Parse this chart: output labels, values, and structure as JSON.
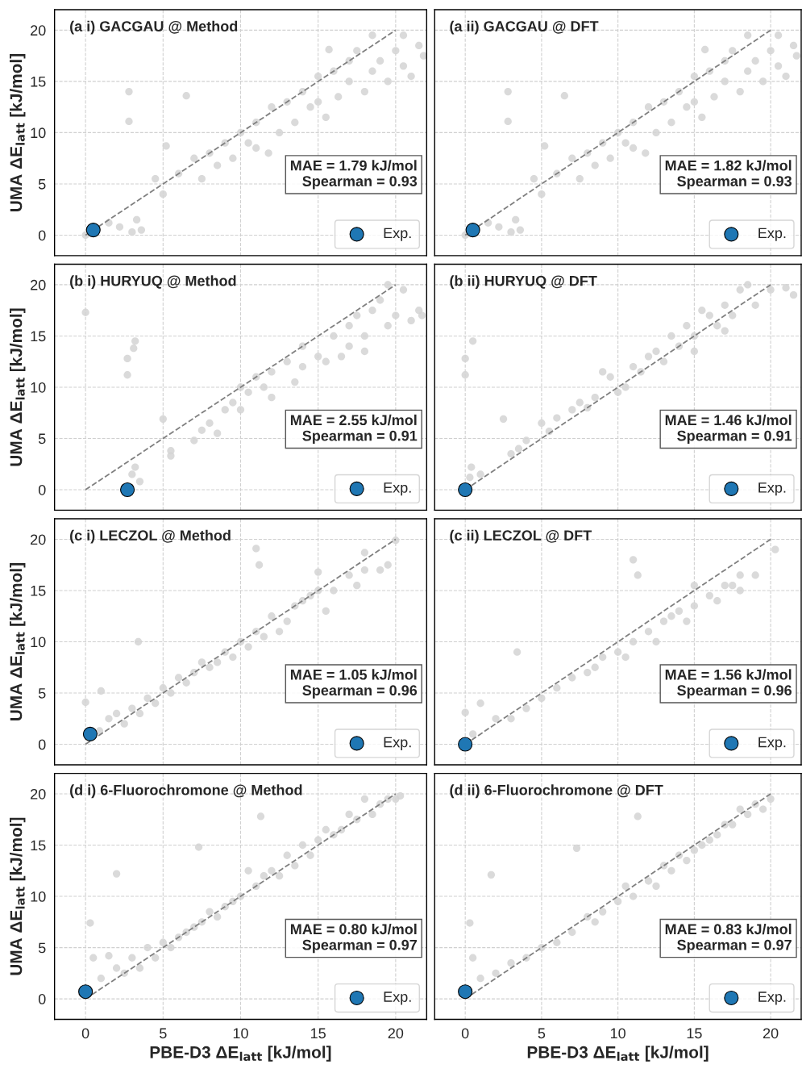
{
  "chart_data": [
    {
      "type": "scatter",
      "title": "(a i) GACGAU @ Method",
      "ylabel": "UMA ΔE$_{latt}$ [kJ/mol]",
      "xlim": [
        -2,
        22
      ],
      "ylim": [
        -2,
        22
      ],
      "xticks": [
        0,
        5,
        10,
        15,
        20
      ],
      "yticks": [
        0,
        5,
        10,
        15,
        20
      ],
      "tick_labels": "y",
      "grid": true,
      "legend": "bottom right",
      "annotations": [
        "MAE = 1.79 kJ/mol\nSpearman = 0.93"
      ],
      "series": [
        {
          "type": "scatter",
          "color": "#d3d3d3",
          "x": [
            0,
            1.5,
            2.2,
            3,
            3.3,
            3.6,
            2.8,
            2.8,
            4.5,
            5,
            5.2,
            6.5,
            6,
            7,
            7.5,
            8,
            8.5,
            9,
            9.5,
            10,
            10.5,
            11,
            11,
            11.8,
            12,
            12.5,
            13,
            13.5,
            14,
            14.5,
            15,
            15,
            15.5,
            16,
            16.3,
            17,
            17,
            17.5,
            18,
            18.5,
            18.5,
            19,
            19.5,
            20,
            20.5,
            21,
            21.5,
            20.5,
            21.8,
            15.7
          ],
          "values": [
            0,
            1.2,
            0.8,
            0.3,
            1.5,
            0.5,
            14,
            11.1,
            5.5,
            4,
            8.7,
            13.6,
            6,
            7.5,
            5.5,
            8,
            6.8,
            9,
            7.5,
            10,
            9,
            8.5,
            11,
            8,
            12.5,
            10,
            13,
            11,
            14,
            12.5,
            13,
            15.5,
            11.5,
            16,
            13.5,
            15,
            17,
            18,
            14,
            16,
            19.5,
            17,
            15,
            18,
            16.5,
            15.5,
            18.5,
            19.5,
            17.5,
            18.1
          ]
        },
        {
          "type": "line",
          "color": "#808080",
          "line_style": "dashed",
          "x": [
            0,
            20
          ],
          "values": [
            0,
            20
          ]
        },
        {
          "type": "scatter",
          "name": "Exp.",
          "color": "#1f77b4",
          "x": [
            0.5
          ],
          "values": [
            0.5
          ]
        }
      ]
    },
    {
      "type": "scatter",
      "title": "(a ii) GACGAU @ DFT",
      "xlim": [
        -2,
        22
      ],
      "ylim": [
        -2,
        22
      ],
      "xticks": [
        0,
        5,
        10,
        15,
        20
      ],
      "yticks": [
        0,
        5,
        10,
        15,
        20
      ],
      "tick_labels": false,
      "grid": true,
      "legend": "bottom right",
      "annotations": [
        "MAE = 1.82 kJ/mol\nSpearman = 0.93"
      ],
      "series": [
        {
          "type": "scatter",
          "color": "#d3d3d3",
          "x": [
            0,
            1.5,
            2.2,
            3,
            3.3,
            3.6,
            2.8,
            2.8,
            4.5,
            5,
            5.2,
            6.5,
            6,
            7,
            7.5,
            8,
            8.5,
            9,
            9.5,
            10,
            10.5,
            11,
            11,
            11.8,
            12,
            12.5,
            13,
            13.5,
            14,
            14.5,
            15,
            15,
            15.5,
            16,
            16.3,
            17,
            17,
            17.5,
            18,
            18.5,
            18.5,
            19,
            19.5,
            20,
            20.5,
            21,
            21.5,
            20.5,
            21.7,
            15.7
          ],
          "values": [
            0,
            1.2,
            0.8,
            0.3,
            1.5,
            0.5,
            14,
            11.1,
            5.5,
            4,
            8.7,
            13.6,
            6,
            7.5,
            5.5,
            8,
            6.8,
            9,
            7.5,
            10,
            9,
            8.5,
            11,
            8,
            12.5,
            10,
            13,
            11,
            14,
            12.5,
            13,
            15.5,
            11.5,
            16,
            13.5,
            15,
            17,
            18,
            14,
            16,
            19.5,
            17,
            15,
            18,
            16.5,
            15.5,
            18.5,
            19.5,
            17.5,
            18.1
          ]
        },
        {
          "type": "line",
          "color": "#808080",
          "line_style": "dashed",
          "x": [
            0,
            20
          ],
          "values": [
            0,
            20
          ]
        },
        {
          "type": "scatter",
          "name": "Exp.",
          "color": "#1f77b4",
          "x": [
            0.5
          ],
          "values": [
            0.5
          ]
        }
      ]
    },
    {
      "type": "scatter",
      "title": "(b i) HURYUQ @ Method",
      "ylabel": "UMA ΔE$_{latt}$ [kJ/mol]",
      "xlim": [
        -2,
        22
      ],
      "ylim": [
        -2,
        22
      ],
      "xticks": [
        0,
        5,
        10,
        15,
        20
      ],
      "yticks": [
        0,
        5,
        10,
        15,
        20
      ],
      "tick_labels": "y",
      "grid": true,
      "legend": "bottom right",
      "annotations": [
        "MAE = 2.55 kJ/mol\nSpearman = 0.91"
      ],
      "series": [
        {
          "type": "scatter",
          "color": "#d3d3d3",
          "x": [
            0,
            2.7,
            2.7,
            3.2,
            3.1,
            3,
            3.2,
            3.5,
            5,
            5.5,
            5.5,
            7,
            7.5,
            8,
            8.5,
            9,
            9.5,
            10,
            10,
            10.5,
            11,
            11.5,
            12,
            12,
            13,
            13.5,
            14,
            14,
            15,
            15.5,
            16,
            16.5,
            17,
            17,
            17.5,
            18,
            18,
            18.5,
            19,
            19.5,
            19.5,
            20,
            20.5,
            21,
            21.5,
            21.7
          ],
          "values": [
            17.3,
            12.8,
            11.2,
            14.5,
            13.8,
            1.5,
            2.2,
            0.8,
            6.9,
            3.8,
            3.3,
            4.8,
            5.8,
            6.5,
            5.5,
            7.8,
            8.5,
            7.8,
            10,
            9.5,
            11,
            10,
            9,
            11.5,
            12.5,
            10.5,
            12,
            14,
            13,
            12.5,
            15,
            13,
            14,
            16,
            17,
            15,
            13.5,
            17.5,
            18.5,
            16,
            20,
            17,
            19.5,
            16.5,
            17.5,
            17
          ]
        },
        {
          "type": "line",
          "color": "#808080",
          "line_style": "dashed",
          "x": [
            0,
            20
          ],
          "values": [
            0,
            20
          ]
        },
        {
          "type": "scatter",
          "name": "Exp.",
          "color": "#1f77b4",
          "x": [
            2.7
          ],
          "values": [
            0
          ]
        }
      ]
    },
    {
      "type": "scatter",
      "title": "(b ii) HURYUQ @ DFT",
      "xlim": [
        -2,
        22
      ],
      "ylim": [
        -2,
        22
      ],
      "xticks": [
        0,
        5,
        10,
        15,
        20
      ],
      "yticks": [
        0,
        5,
        10,
        15,
        20
      ],
      "tick_labels": false,
      "grid": true,
      "legend": "bottom right",
      "annotations": [
        "MAE = 1.46 kJ/mol\nSpearman = 0.91"
      ],
      "series": [
        {
          "type": "scatter",
          "color": "#d3d3d3",
          "x": [
            0,
            0,
            0.5,
            0.4,
            0.3,
            1,
            2.5,
            3,
            3.5,
            4,
            5,
            5.5,
            6,
            7,
            7.5,
            8,
            8.5,
            9,
            9.5,
            10,
            10.5,
            11,
            11.5,
            12,
            12.5,
            13,
            13.5,
            14,
            14.5,
            15,
            15,
            16,
            16.5,
            17,
            17.5,
            18,
            18.5,
            19,
            20,
            21,
            21.5,
            17,
            15.5
          ],
          "values": [
            12.8,
            11.2,
            14.5,
            2.2,
            1.2,
            1.5,
            6.9,
            3.5,
            4,
            4.8,
            6.5,
            5.7,
            7,
            7.8,
            8.5,
            8,
            9,
            11.5,
            11,
            9.5,
            10,
            12,
            11.5,
            13,
            13.5,
            12.5,
            15,
            14,
            16,
            15,
            13.5,
            17,
            16,
            18,
            17,
            19.5,
            20,
            18,
            19.5,
            19.7,
            19,
            15.5,
            17.5
          ]
        },
        {
          "type": "line",
          "color": "#808080",
          "line_style": "dashed",
          "x": [
            0,
            20
          ],
          "values": [
            0,
            20
          ]
        },
        {
          "type": "scatter",
          "name": "Exp.",
          "color": "#1f77b4",
          "x": [
            0
          ],
          "values": [
            0
          ]
        }
      ]
    },
    {
      "type": "scatter",
      "title": "(c i) LECZOL @ Method",
      "ylabel": "UMA ΔE$_{latt}$ [kJ/mol]",
      "xlim": [
        -2,
        22
      ],
      "ylim": [
        -2,
        22
      ],
      "xticks": [
        0,
        5,
        10,
        15,
        20
      ],
      "yticks": [
        0,
        5,
        10,
        15,
        20
      ],
      "tick_labels": "y",
      "grid": true,
      "legend": "bottom right",
      "annotations": [
        "MAE = 1.05 kJ/mol\nSpearman = 0.96"
      ],
      "series": [
        {
          "type": "scatter",
          "color": "#d3d3d3",
          "x": [
            0,
            0.9,
            1,
            1.5,
            2,
            2.5,
            3,
            3.4,
            3.5,
            4,
            4.5,
            5,
            5.5,
            6,
            6.5,
            7,
            7.5,
            8,
            8.5,
            9,
            9.5,
            10,
            10.5,
            11,
            11,
            11.2,
            11.5,
            12,
            12.5,
            13,
            13.5,
            14,
            14.5,
            15,
            15,
            15.5,
            16,
            17,
            17.5,
            18,
            18,
            19,
            20,
            19.5
          ],
          "values": [
            4.1,
            1.3,
            5.2,
            2.5,
            3,
            2,
            3.5,
            10,
            3,
            4.5,
            4,
            5.5,
            5,
            6.5,
            6,
            7,
            8,
            7.5,
            8,
            9,
            8.5,
            10,
            9.5,
            11,
            19.1,
            17.5,
            10.5,
            12.5,
            11,
            12,
            13.5,
            14,
            14.5,
            15,
            16.8,
            13,
            15,
            16.5,
            15.5,
            17,
            18.7,
            17,
            19.9,
            17.5
          ]
        },
        {
          "type": "line",
          "color": "#808080",
          "line_style": "dashed",
          "x": [
            0,
            20
          ],
          "values": [
            0,
            20
          ]
        },
        {
          "type": "scatter",
          "name": "Exp.",
          "color": "#1f77b4",
          "x": [
            0.3
          ],
          "values": [
            1.0
          ]
        }
      ]
    },
    {
      "type": "scatter",
      "title": "(c ii) LECZOL @ DFT",
      "xlim": [
        -2,
        22
      ],
      "ylim": [
        -2,
        22
      ],
      "xticks": [
        0,
        5,
        10,
        15,
        20
      ],
      "yticks": [
        0,
        5,
        10,
        15,
        20
      ],
      "tick_labels": false,
      "grid": true,
      "legend": "bottom right",
      "annotations": [
        "MAE = 1.56 kJ/mol\nSpearman = 0.96"
      ],
      "series": [
        {
          "type": "scatter",
          "color": "#d3d3d3",
          "x": [
            0,
            0.5,
            1,
            2,
            3,
            3.4,
            4,
            5,
            6,
            7,
            8,
            8.5,
            9,
            10,
            10.5,
            11,
            11,
            11.3,
            12,
            12.5,
            13,
            13.5,
            14,
            14.5,
            15,
            15,
            16,
            16.5,
            17,
            17.5,
            18,
            18,
            19,
            20.3
          ],
          "values": [
            3.1,
            1.0,
            4.0,
            2.5,
            2.5,
            9,
            3.5,
            4.5,
            5.5,
            6.5,
            7,
            7.5,
            8.5,
            9,
            8.5,
            10,
            18,
            16.5,
            11,
            10,
            12,
            12.5,
            13,
            12,
            13.5,
            15.5,
            14.5,
            14,
            15.5,
            15.5,
            15,
            16.5,
            16.5,
            19
          ]
        },
        {
          "type": "line",
          "color": "#808080",
          "line_style": "dashed",
          "x": [
            0,
            20
          ],
          "values": [
            0,
            20
          ]
        },
        {
          "type": "scatter",
          "name": "Exp.",
          "color": "#1f77b4",
          "x": [
            0
          ],
          "values": [
            0
          ]
        }
      ]
    },
    {
      "type": "scatter",
      "title": "(d i) 6-Fluorochromone @ Method",
      "xlabel": "PBE-D3 ΔE$_{latt}$ [kJ/mol]",
      "ylabel": "UMA ΔE$_{latt}$ [kJ/mol]",
      "xlim": [
        -2,
        22
      ],
      "ylim": [
        -2,
        22
      ],
      "xticks": [
        0,
        5,
        10,
        15,
        20
      ],
      "yticks": [
        0,
        5,
        10,
        15,
        20
      ],
      "grid": true,
      "legend": "bottom right",
      "annotations": [
        "MAE = 0.80 kJ/mol\nSpearman = 0.97"
      ],
      "series": [
        {
          "type": "scatter",
          "color": "#d3d3d3",
          "x": [
            0.3,
            0.5,
            1,
            1.5,
            2,
            2,
            2.5,
            3,
            3.5,
            4,
            4.5,
            5,
            5.5,
            6,
            6.5,
            7,
            7.3,
            7.5,
            8,
            8.5,
            9,
            9.5,
            10,
            10.5,
            11,
            11.3,
            11.5,
            12,
            12.5,
            13,
            13.5,
            14,
            14.5,
            15,
            15.5,
            16,
            16.5,
            17,
            17.5,
            18,
            18.5,
            19,
            19.5,
            20,
            20.3
          ],
          "values": [
            7.4,
            4,
            2,
            4.2,
            12.2,
            3,
            2.5,
            4,
            3,
            5,
            4,
            5.5,
            5,
            6,
            6.5,
            7,
            14.8,
            7.5,
            8.5,
            8,
            9,
            9.5,
            10,
            12.5,
            11,
            17.8,
            12,
            12.5,
            12,
            14,
            13,
            15,
            14,
            15.5,
            16.5,
            16,
            16.5,
            18,
            17.5,
            19.5,
            18,
            19,
            19.5,
            19.5,
            19.8
          ]
        },
        {
          "type": "line",
          "color": "#808080",
          "line_style": "dashed",
          "x": [
            0,
            20
          ],
          "values": [
            0,
            20
          ]
        },
        {
          "type": "scatter",
          "name": "Exp.",
          "color": "#1f77b4",
          "x": [
            0
          ],
          "values": [
            0.7
          ]
        }
      ]
    },
    {
      "type": "scatter",
      "title": "(d ii) 6-Fluorochromone @ DFT",
      "xlabel": "PBE-D3 ΔE$_{latt}$ [kJ/mol]",
      "xlim": [
        -2,
        22
      ],
      "ylim": [
        -2,
        22
      ],
      "xticks": [
        0,
        5,
        10,
        15,
        20
      ],
      "yticks": [
        0,
        5,
        10,
        15,
        20
      ],
      "tick_labels": "x",
      "grid": true,
      "legend": "bottom right",
      "annotations": [
        "MAE = 0.83 kJ/mol\nSpearman = 0.97"
      ],
      "series": [
        {
          "type": "scatter",
          "color": "#d3d3d3",
          "x": [
            0.3,
            0.5,
            1,
            1.7,
            2,
            3,
            4,
            5,
            6,
            7,
            7.3,
            8,
            8.5,
            9,
            10,
            10.5,
            11,
            11.3,
            12,
            12.5,
            13,
            13.5,
            14,
            14.5,
            15,
            15.5,
            16,
            16.5,
            17,
            17.5,
            18,
            18.5,
            19,
            19.5,
            20
          ],
          "values": [
            7.4,
            4,
            2,
            12.1,
            2.5,
            3.5,
            4,
            5,
            5.5,
            6.5,
            14.7,
            8,
            7.5,
            8.5,
            9.5,
            11,
            10,
            17.8,
            11.5,
            11,
            13,
            12.5,
            14,
            13.5,
            14.5,
            15,
            15.5,
            16,
            17,
            17,
            18.5,
            18,
            19,
            18.5,
            19.5
          ]
        },
        {
          "type": "line",
          "color": "#808080",
          "line_style": "dashed",
          "x": [
            0,
            20
          ],
          "values": [
            0,
            20
          ]
        },
        {
          "type": "scatter",
          "name": "Exp.",
          "color": "#1f77b4",
          "x": [
            0
          ],
          "values": [
            0.7
          ]
        }
      ]
    }
  ]
}
